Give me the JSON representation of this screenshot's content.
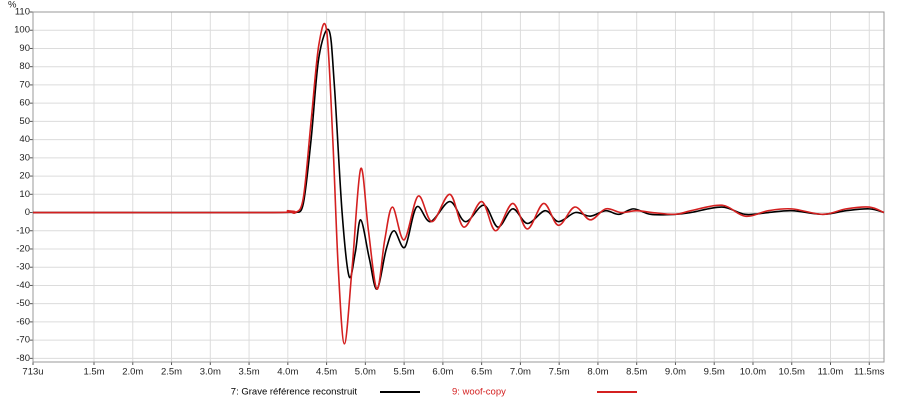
{
  "chart_data": {
    "type": "line",
    "y_unit": "%",
    "xlim": [
      0.713,
      11.69
    ],
    "ylim": [
      -82,
      110
    ],
    "grid": true,
    "xticks": [
      {
        "value": 0.713,
        "label": "713u"
      },
      {
        "value": 1.5,
        "label": "1.5m"
      },
      {
        "value": 2.0,
        "label": "2.0m"
      },
      {
        "value": 2.5,
        "label": "2.5m"
      },
      {
        "value": 3.0,
        "label": "3.0m"
      },
      {
        "value": 3.5,
        "label": "3.5m"
      },
      {
        "value": 4.0,
        "label": "4.0m"
      },
      {
        "value": 4.5,
        "label": "4.5m"
      },
      {
        "value": 5.0,
        "label": "5.0m"
      },
      {
        "value": 5.5,
        "label": "5.5m"
      },
      {
        "value": 6.0,
        "label": "6.0m"
      },
      {
        "value": 6.5,
        "label": "6.5m"
      },
      {
        "value": 7.0,
        "label": "7.0m"
      },
      {
        "value": 7.5,
        "label": "7.5m"
      },
      {
        "value": 8.0,
        "label": "8.0m"
      },
      {
        "value": 8.5,
        "label": "8.5m"
      },
      {
        "value": 9.0,
        "label": "9.0m"
      },
      {
        "value": 9.5,
        "label": "9.5m"
      },
      {
        "value": 10.0,
        "label": "10.0m"
      },
      {
        "value": 10.5,
        "label": "10.5m"
      },
      {
        "value": 11.0,
        "label": "11.0m"
      },
      {
        "value": 11.5,
        "label": "11.5ms"
      }
    ],
    "yticks": [
      -80,
      -70,
      -60,
      -50,
      -40,
      -30,
      -20,
      -10,
      0,
      10,
      20,
      30,
      40,
      50,
      60,
      70,
      80,
      90,
      100,
      110
    ],
    "series": [
      {
        "name": "7: Grave référence reconstruit",
        "color": "#000000",
        "x": [
          0.713,
          3.8,
          4.0,
          4.1,
          4.2,
          4.3,
          4.4,
          4.53,
          4.6,
          4.7,
          4.79,
          4.87,
          4.94,
          5.05,
          5.15,
          5.27,
          5.37,
          5.51,
          5.66,
          5.84,
          6.09,
          6.29,
          6.53,
          6.71,
          6.9,
          7.09,
          7.32,
          7.49,
          7.71,
          7.9,
          8.1,
          8.27,
          8.46,
          8.68,
          9.0,
          9.2,
          9.6,
          9.9,
          10.2,
          10.5,
          10.9,
          11.2,
          11.5,
          11.69
        ],
        "values": [
          0,
          0,
          0.5,
          0,
          5,
          40,
          85,
          100,
          70,
          0,
          -35,
          -22,
          -4,
          -25,
          -42,
          -20,
          -10,
          -19,
          3,
          -5,
          6,
          -5,
          4,
          -8,
          2,
          -6,
          1,
          -5,
          0,
          -2,
          1,
          -1,
          2,
          -1,
          -1,
          0,
          3,
          -1,
          0,
          1,
          -1,
          1,
          2,
          0
        ]
      },
      {
        "name": "9: woof-copy",
        "color": "#d42020",
        "x": [
          0.713,
          3.8,
          4.0,
          4.1,
          4.2,
          4.3,
          4.4,
          4.5,
          4.58,
          4.65,
          4.73,
          4.83,
          4.94,
          5.04,
          5.15,
          5.25,
          5.35,
          5.5,
          5.68,
          5.86,
          6.09,
          6.27,
          6.5,
          6.68,
          6.9,
          7.09,
          7.3,
          7.49,
          7.7,
          7.9,
          8.1,
          8.3,
          8.5,
          8.7,
          9.0,
          9.2,
          9.6,
          9.9,
          10.2,
          10.5,
          10.9,
          11.2,
          11.5,
          11.69
        ],
        "values": [
          0,
          0,
          1,
          0,
          8,
          50,
          92,
          100,
          40,
          -30,
          -72,
          -30,
          24,
          -10,
          -42,
          -15,
          3,
          -15,
          9,
          -5,
          10,
          -8,
          6,
          -10,
          5,
          -9,
          5,
          -7,
          3,
          -4,
          2,
          0,
          1,
          0,
          -1,
          1,
          4,
          -2,
          1,
          2,
          -1,
          2,
          3,
          0
        ]
      }
    ]
  }
}
